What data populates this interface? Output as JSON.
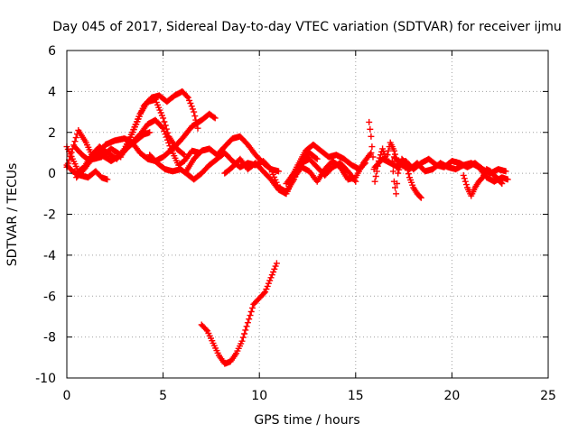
{
  "chart_data": {
    "type": "scatter",
    "title": "Day 045 of 2017, Sidereal Day-to-day VTEC variation (SDTVAR) for receiver ijmu",
    "xlabel": "GPS time / hours",
    "ylabel": "SDTVAR / TECUs",
    "xlim": [
      0,
      25
    ],
    "ylim": [
      -10,
      6
    ],
    "xticks": [
      0,
      5,
      10,
      15,
      20,
      25
    ],
    "yticks": [
      -10,
      -8,
      -6,
      -4,
      -2,
      0,
      2,
      4,
      6
    ],
    "xtick_labels": [
      "0",
      "5",
      "10",
      "15",
      "20",
      "25"
    ],
    "ytick_labels": [
      "-10",
      "-8",
      "-6",
      "-4",
      "-2",
      "0",
      "2",
      "4",
      "6"
    ],
    "grid": true,
    "marker": "plus",
    "color": "#ff0000",
    "series": [
      {
        "name": "s1",
        "x": [
          0.0,
          0.3,
          0.6,
          1.0,
          1.4,
          1.8,
          2.3,
          2.8,
          3.2,
          3.6,
          4.0,
          4.3
        ],
        "y": [
          0.3,
          1.2,
          2.1,
          1.5,
          0.7,
          0.8,
          1.2,
          0.9,
          1.3,
          1.6,
          1.9,
          2.0
        ]
      },
      {
        "name": "s2",
        "x": [
          0.0,
          0.3,
          0.6,
          0.9,
          1.3,
          1.7,
          2.1,
          2.6,
          3.0,
          3.4,
          3.8,
          4.2,
          4.6,
          5.0,
          5.3,
          5.7,
          6.1
        ],
        "y": [
          1.3,
          0.7,
          0.1,
          0.3,
          0.9,
          1.3,
          1.0,
          0.7,
          1.2,
          2.0,
          2.9,
          3.5,
          3.6,
          2.7,
          1.8,
          1.2,
          0.9
        ]
      },
      {
        "name": "s3",
        "x": [
          0.5,
          0.9,
          1.3,
          1.8,
          2.3,
          2.8,
          3.3,
          3.8,
          4.2,
          4.6,
          5.0,
          5.4,
          5.8,
          6.1,
          6.5,
          6.9
        ],
        "y": [
          -0.2,
          0.2,
          0.7,
          0.9,
          0.6,
          0.9,
          1.4,
          1.9,
          2.4,
          2.6,
          2.2,
          1.2,
          0.4,
          0.6,
          1.1,
          1.0
        ]
      },
      {
        "name": "s4",
        "x": [
          0.0,
          0.3,
          0.7,
          1.1,
          1.5,
          1.8,
          2.1
        ],
        "y": [
          0.4,
          0.1,
          -0.1,
          -0.2,
          0.1,
          -0.2,
          -0.3
        ]
      },
      {
        "name": "s5",
        "x": [
          0.4,
          0.8,
          1.2,
          1.6,
          2.0,
          2.5,
          3.0,
          3.4,
          3.8,
          4.2,
          4.6,
          5.0,
          5.5,
          6.0,
          6.5,
          7.0,
          7.4,
          7.7
        ],
        "y": [
          1.3,
          0.9,
          0.6,
          0.9,
          1.4,
          1.6,
          1.7,
          1.5,
          1.0,
          0.7,
          0.6,
          0.8,
          1.2,
          1.7,
          2.3,
          2.6,
          2.9,
          2.7
        ]
      },
      {
        "name": "s6",
        "x": [
          2.8,
          3.2,
          3.6,
          4.0,
          4.4,
          4.8,
          5.2,
          5.6,
          6.0,
          6.3,
          6.6,
          6.8
        ],
        "y": [
          0.8,
          1.5,
          2.4,
          3.3,
          3.7,
          3.8,
          3.5,
          3.8,
          4.0,
          3.7,
          3.0,
          2.2
        ]
      },
      {
        "name": "s7",
        "x": [
          4.3,
          4.7,
          5.1,
          5.5,
          5.9,
          6.2,
          6.6,
          7.0,
          7.4,
          7.8,
          8.2,
          8.6,
          9.0,
          9.4,
          9.8,
          10.2,
          10.6,
          11.0,
          11.4,
          11.8,
          12.2,
          12.6,
          13.0
        ],
        "y": [
          0.9,
          0.5,
          0.2,
          0.1,
          0.2,
          0.0,
          -0.3,
          0.0,
          0.4,
          0.7,
          1.0,
          0.6,
          0.3,
          0.5,
          0.4,
          0.6,
          0.2,
          -0.7,
          -0.9,
          -0.3,
          0.6,
          1.0,
          0.7
        ]
      },
      {
        "name": "s8",
        "x": [
          6.2,
          6.6,
          7.0,
          7.4,
          7.8,
          8.2,
          8.6,
          9.0,
          9.4,
          9.8,
          10.2,
          10.6,
          11.0
        ],
        "y": [
          0.1,
          0.7,
          1.1,
          1.2,
          0.9,
          1.3,
          1.7,
          1.8,
          1.4,
          0.9,
          0.5,
          0.2,
          0.1
        ]
      },
      {
        "name": "s9",
        "x": [
          8.2,
          8.6,
          9.0,
          9.4,
          9.8,
          10.2,
          10.6,
          11.0,
          11.4,
          11.8,
          12.2,
          12.6,
          13.0,
          13.4,
          13.8,
          14.2,
          14.6,
          15.0,
          15.4,
          15.8
        ],
        "y": [
          0.0,
          0.3,
          0.7,
          0.2,
          0.5,
          0.1,
          -0.3,
          -0.8,
          -1.0,
          -0.2,
          0.3,
          0.1,
          -0.4,
          0.2,
          0.6,
          0.3,
          -0.3,
          -0.2,
          0.5,
          1.0
        ]
      },
      {
        "name": "s10",
        "x": [
          11.6,
          12.0,
          12.4,
          12.8,
          13.2,
          13.6,
          14.0,
          14.4,
          14.8,
          15.2,
          15.5
        ],
        "y": [
          -0.3,
          0.4,
          1.1,
          1.4,
          1.1,
          0.8,
          0.9,
          0.7,
          0.4,
          0.2,
          0.5
        ]
      },
      {
        "name": "s11",
        "x": [
          11.4,
          11.8,
          12.2,
          12.6,
          13.0,
          13.4,
          13.8,
          14.2,
          14.6,
          15.0
        ],
        "y": [
          -0.5,
          0.0,
          0.5,
          0.7,
          0.3,
          -0.1,
          0.3,
          0.5,
          0.1,
          -0.4
        ]
      },
      {
        "name": "s12",
        "x": [
          15.7,
          15.8,
          15.9,
          16.0,
          16.2,
          16.4,
          16.6,
          16.8,
          17.0,
          17.2
        ],
        "y": [
          2.5,
          1.8,
          0.8,
          -0.4,
          0.6,
          1.2,
          0.7,
          1.5,
          1.1,
          0.4
        ]
      },
      {
        "name": "s13",
        "x": [
          16.0,
          16.4,
          16.8,
          17.2,
          17.6,
          18.0,
          18.4,
          18.8,
          19.2,
          19.6,
          20.0,
          20.4,
          20.8,
          21.2,
          21.6,
          22.0,
          22.4,
          22.8
        ],
        "y": [
          0.3,
          0.7,
          0.5,
          0.3,
          0.6,
          0.2,
          0.5,
          0.7,
          0.4,
          0.3,
          0.6,
          0.5,
          0.3,
          0.5,
          0.2,
          0.0,
          0.2,
          0.1
        ]
      },
      {
        "name": "s14",
        "x": [
          17.0,
          17.4,
          17.8,
          18.2,
          18.6,
          19.0,
          19.4,
          19.8,
          20.2,
          20.6,
          21.0,
          21.4,
          21.8,
          22.2,
          22.6,
          22.9
        ],
        "y": [
          0.8,
          0.4,
          0.2,
          0.5,
          0.1,
          0.2,
          0.5,
          0.3,
          0.2,
          0.4,
          0.5,
          0.3,
          -0.2,
          -0.4,
          -0.2,
          -0.3
        ]
      },
      {
        "name": "s15",
        "x": [
          16.9,
          17.0,
          17.1,
          17.2,
          17.4,
          17.6,
          17.8,
          18.0,
          18.2,
          18.4
        ],
        "y": [
          0.6,
          -0.4,
          -1.0,
          0.0,
          0.7,
          0.5,
          -0.2,
          -0.7,
          -1.0,
          -1.2
        ]
      },
      {
        "name": "s16",
        "x": [
          20.6,
          20.8,
          21.0,
          21.2,
          21.4,
          21.6,
          21.8,
          22.0,
          22.2,
          22.4,
          22.6
        ],
        "y": [
          -0.1,
          -0.7,
          -1.1,
          -0.7,
          -0.4,
          -0.2,
          0.2,
          0.1,
          -0.1,
          -0.3,
          -0.5
        ]
      },
      {
        "name": "s17",
        "x": [
          7.0,
          7.3,
          7.6,
          7.9,
          8.2,
          8.5,
          8.8,
          9.1,
          9.4,
          9.7,
          10.0,
          10.3,
          10.6,
          10.9
        ],
        "y": [
          -7.4,
          -7.7,
          -8.3,
          -8.9,
          -9.3,
          -9.2,
          -8.8,
          -8.2,
          -7.3,
          -6.4,
          -6.1,
          -5.8,
          -5.1,
          -4.4
        ]
      }
    ]
  }
}
